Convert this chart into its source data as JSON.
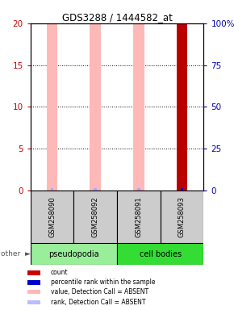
{
  "title": "GDS3288 / 1444582_at",
  "samples": [
    "GSM258090",
    "GSM258092",
    "GSM258091",
    "GSM258093"
  ],
  "bar_values": [
    20,
    20,
    20,
    20
  ],
  "bar_colors": [
    "#ffb8b8",
    "#ffb8b8",
    "#ffb8b8",
    "#bb0000"
  ],
  "rank_values": [
    0.3,
    0.3,
    0.3,
    0.3
  ],
  "rank_colors": [
    "#aaaaff",
    "#aaaaff",
    "#aaaaff",
    "#0000cc"
  ],
  "ylim_left": [
    0,
    20
  ],
  "ylim_right": [
    0,
    100
  ],
  "yticks_left": [
    0,
    5,
    10,
    15,
    20
  ],
  "yticks_right": [
    0,
    25,
    50,
    75,
    100
  ],
  "left_tick_color": "#cc0000",
  "right_tick_color": "#0000aa",
  "groups": [
    {
      "label": "pseudopodia",
      "start": 0,
      "end": 2,
      "color": "#99ee99"
    },
    {
      "label": "cell bodies",
      "start": 2,
      "end": 4,
      "color": "#33dd33"
    }
  ],
  "legend_items": [
    {
      "color": "#cc0000",
      "label": "count"
    },
    {
      "color": "#0000cc",
      "label": "percentile rank within the sample"
    },
    {
      "color": "#ffb8b8",
      "label": "value, Detection Call = ABSENT"
    },
    {
      "color": "#bbbbff",
      "label": "rank, Detection Call = ABSENT"
    }
  ],
  "bar_width": 0.25,
  "rank_bar_width": 0.07,
  "sample_box_color": "#cccccc",
  "grid_linestyle": ":",
  "grid_color": "black",
  "grid_linewidth": 0.7
}
